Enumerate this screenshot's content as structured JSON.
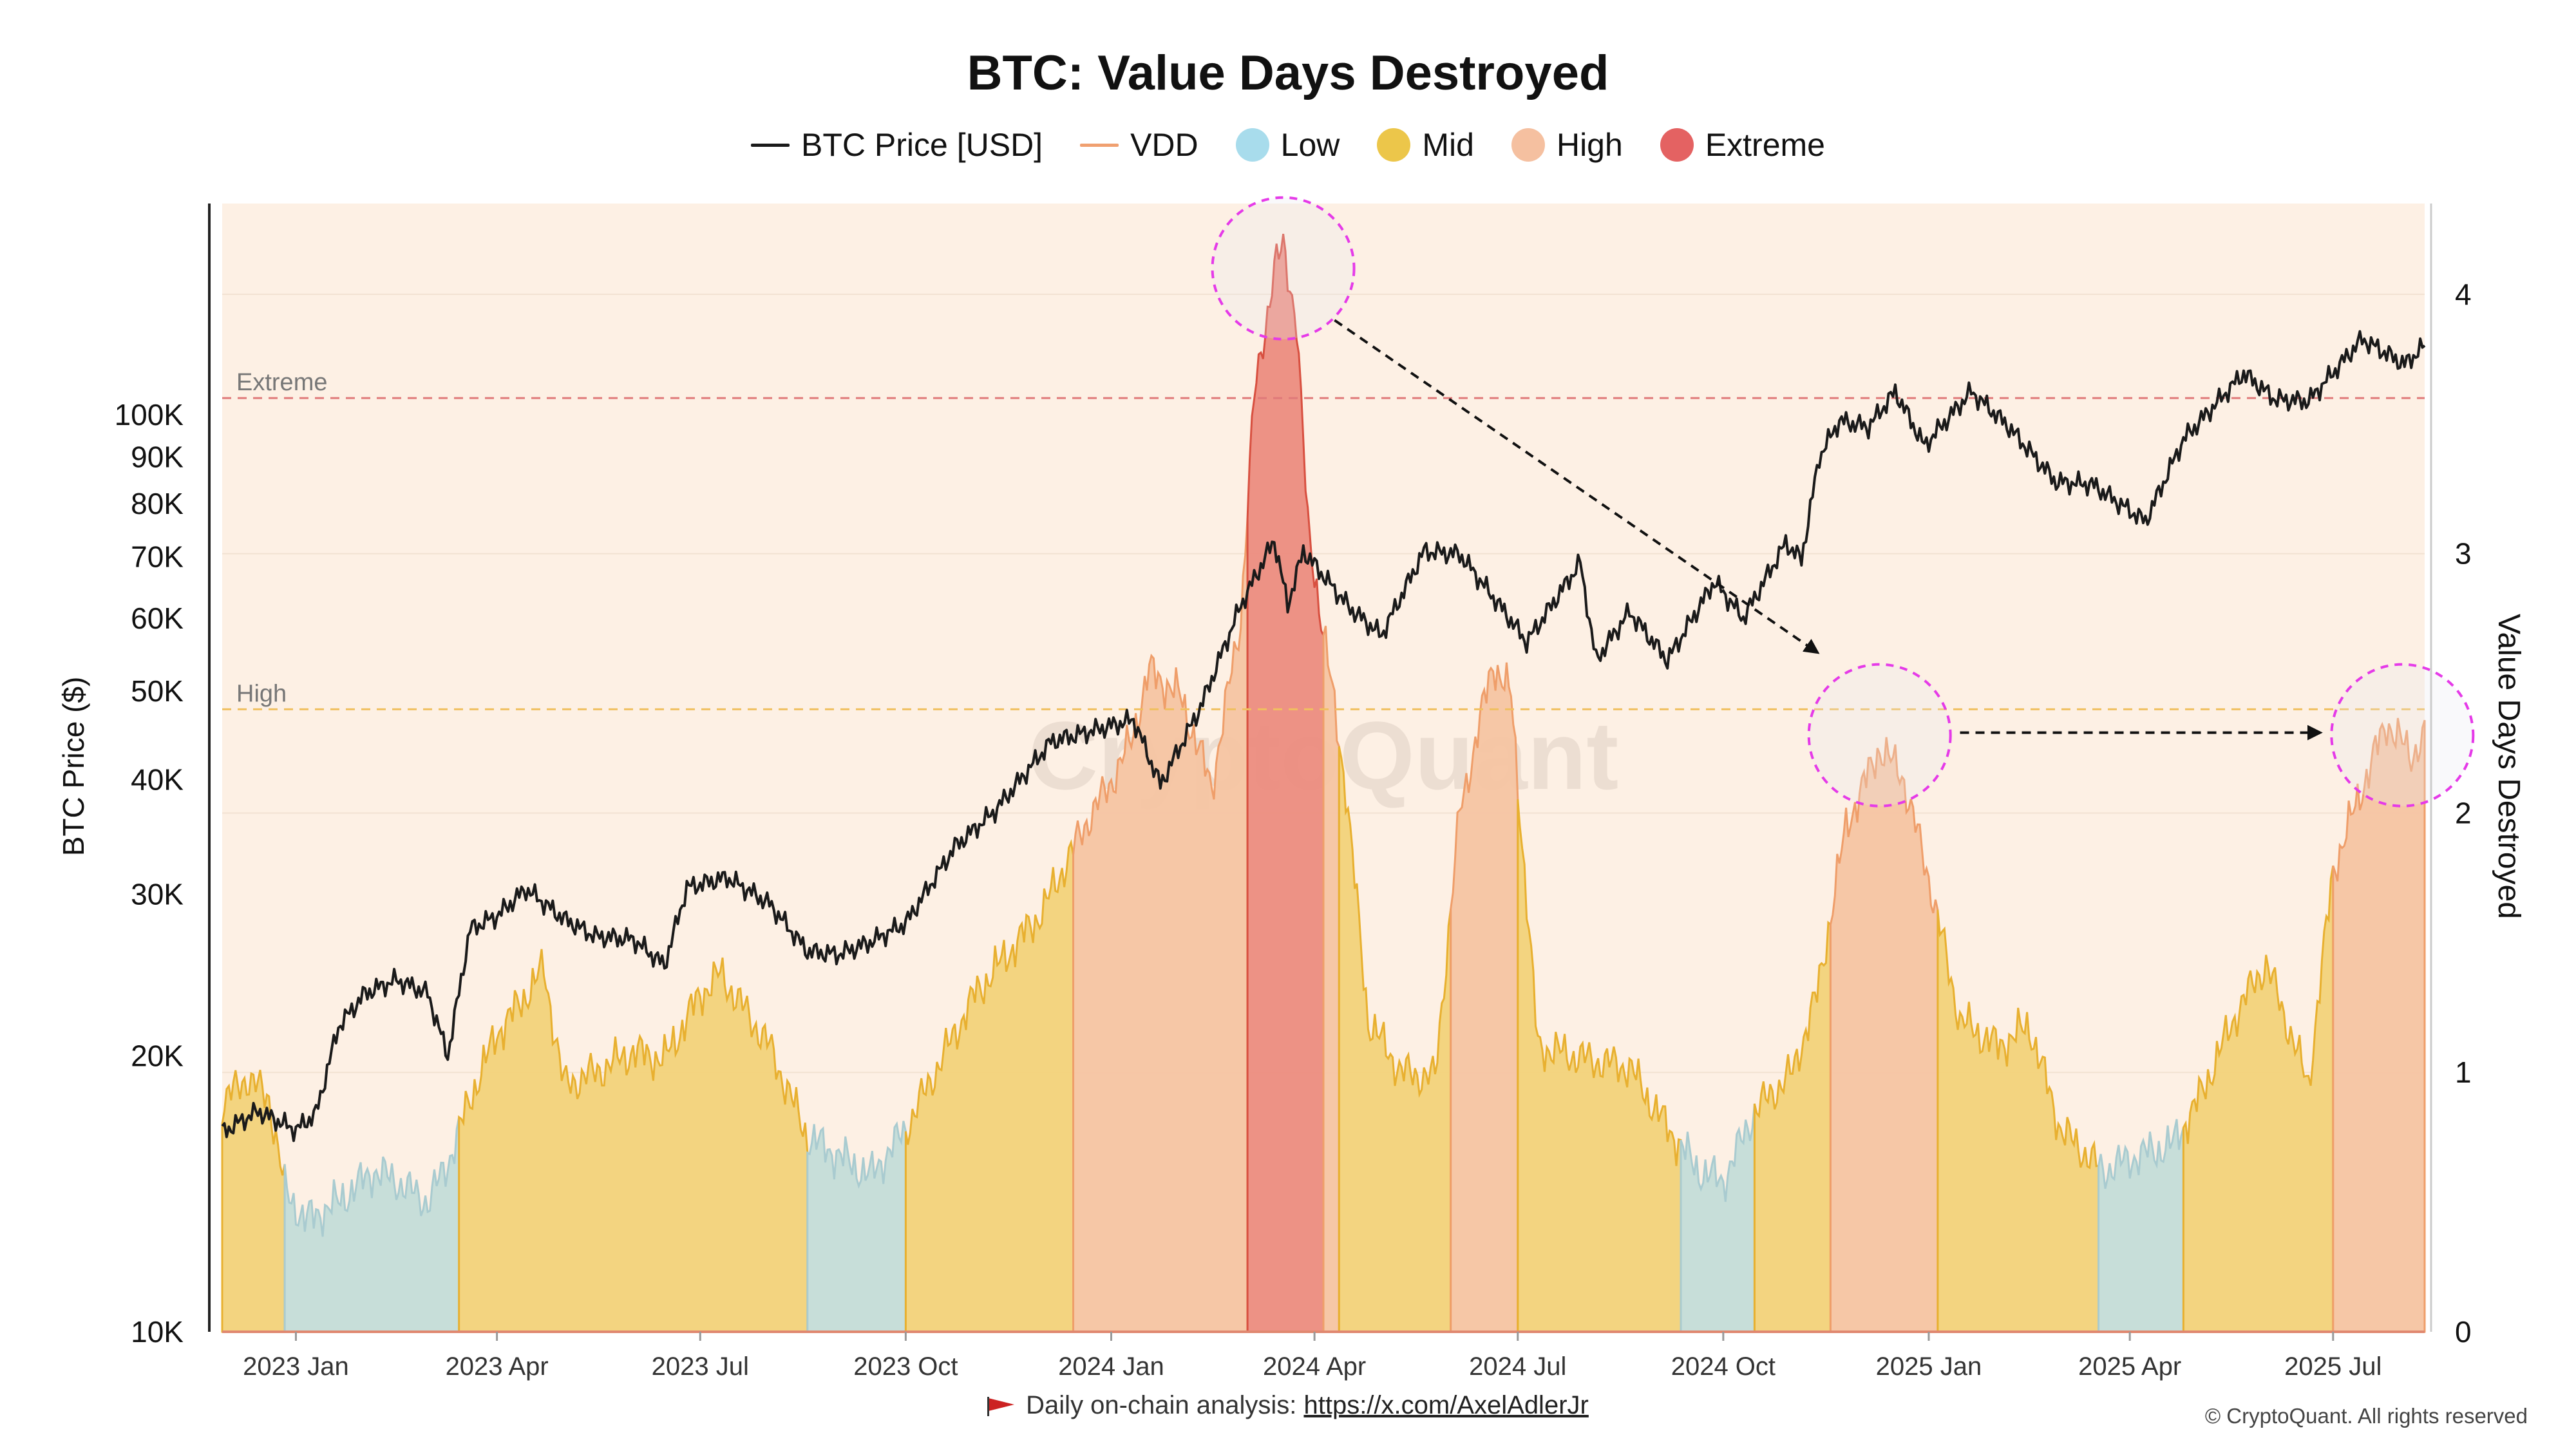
{
  "title": "BTC: Value Days Destroyed",
  "legend": [
    {
      "label": "BTC Price [USD]",
      "kind": "line",
      "color": "#1a1a1a"
    },
    {
      "label": "VDD",
      "kind": "line",
      "color": "#f0a070"
    },
    {
      "label": "Low",
      "kind": "dot",
      "color": "#a8dcec"
    },
    {
      "label": "Mid",
      "kind": "dot",
      "color": "#ecc64a"
    },
    {
      "label": "High",
      "kind": "dot",
      "color": "#f5c0a0"
    },
    {
      "label": "Extreme",
      "kind": "dot",
      "color": "#e46262"
    }
  ],
  "footer": {
    "text": "Daily on-chain analysis: ",
    "link": "https://x.com/AxelAdlerJr"
  },
  "copyright": "© CryptoQuant. All rights reserved",
  "watermark": "CryptoQuant",
  "chart_data": {
    "type": "area",
    "title": "BTC: Value Days Destroyed",
    "xlabel": "",
    "ylabel_left": "BTC Price ($)",
    "ylabel_right": "Value Days Destroyed",
    "x_range": [
      "2022-11-29",
      "2025-08-11"
    ],
    "x_ticks": [
      {
        "date": "2023-01-01",
        "label": "2023 Jan"
      },
      {
        "date": "2023-04-01",
        "label": "2023 Apr"
      },
      {
        "date": "2023-07-01",
        "label": "2023 Jul"
      },
      {
        "date": "2023-10-01",
        "label": "2023 Oct"
      },
      {
        "date": "2024-01-01",
        "label": "2024 Jan"
      },
      {
        "date": "2024-04-01",
        "label": "2024 Apr"
      },
      {
        "date": "2024-07-01",
        "label": "2024 Jul"
      },
      {
        "date": "2024-10-01",
        "label": "2024 Oct"
      },
      {
        "date": "2025-01-01",
        "label": "2025 Jan"
      },
      {
        "date": "2025-04-01",
        "label": "2025 Apr"
      },
      {
        "date": "2025-07-01",
        "label": "2025 Jul"
      }
    ],
    "y_left": {
      "scale": "log",
      "min": 10000,
      "max": 170000,
      "ticks": [
        {
          "value": 10000,
          "label": "10K"
        },
        {
          "value": 20000,
          "label": "20K"
        },
        {
          "value": 30000,
          "label": "30K"
        },
        {
          "value": 40000,
          "label": "40K"
        },
        {
          "value": 50000,
          "label": "50K"
        },
        {
          "value": 60000,
          "label": "60K"
        },
        {
          "value": 70000,
          "label": "70K"
        },
        {
          "value": 80000,
          "label": "80K"
        },
        {
          "value": 90000,
          "label": "90K"
        },
        {
          "value": 100000,
          "label": "100K"
        }
      ]
    },
    "y_right": {
      "scale": "linear",
      "min": 0,
      "max": 4.35,
      "ticks": [
        {
          "value": 0,
          "label": "0"
        },
        {
          "value": 1,
          "label": "1"
        },
        {
          "value": 2,
          "label": "2"
        },
        {
          "value": 3,
          "label": "3"
        },
        {
          "value": 4,
          "label": "4"
        }
      ]
    },
    "thresholds": [
      {
        "name": "Extreme",
        "value": 3.6,
        "color": "#e07a7a"
      },
      {
        "name": "High",
        "value": 2.4,
        "color": "#f0c060"
      }
    ],
    "band_colors": {
      "Low": "#c4dcd8",
      "Mid": "#f2d27a",
      "High": "#f6c4a2",
      "Extreme": "#ec8c80",
      "background": "#fdf0e4"
    },
    "band_lines": {
      "Low": "#a9cbd0",
      "Mid": "#e8b030",
      "High": "#ef9e6a",
      "Extreme": "#d85040"
    },
    "series": [
      {
        "name": "BTC Price [USD]",
        "axis": "left",
        "points": [
          [
            "2022-11-29",
            16500
          ],
          [
            "2022-12-15",
            17400
          ],
          [
            "2023-01-01",
            16600
          ],
          [
            "2023-01-10",
            17300
          ],
          [
            "2023-01-20",
            21500
          ],
          [
            "2023-02-01",
            23400
          ],
          [
            "2023-02-15",
            24200
          ],
          [
            "2023-03-01",
            23400
          ],
          [
            "2023-03-10",
            20000
          ],
          [
            "2023-03-20",
            27500
          ],
          [
            "2023-04-01",
            28400
          ],
          [
            "2023-04-14",
            30400
          ],
          [
            "2023-05-01",
            28200
          ],
          [
            "2023-05-15",
            27000
          ],
          [
            "2023-06-01",
            26800
          ],
          [
            "2023-06-15",
            25100
          ],
          [
            "2023-06-25",
            30500
          ],
          [
            "2023-07-13",
            31300
          ],
          [
            "2023-08-01",
            29300
          ],
          [
            "2023-08-18",
            26000
          ],
          [
            "2023-09-01",
            25800
          ],
          [
            "2023-09-15",
            26600
          ],
          [
            "2023-10-01",
            27900
          ],
          [
            "2023-10-23",
            33800
          ],
          [
            "2023-11-10",
            37000
          ],
          [
            "2023-12-05",
            44000
          ],
          [
            "2024-01-11",
            46500
          ],
          [
            "2024-01-23",
            39500
          ],
          [
            "2024-02-10",
            48000
          ],
          [
            "2024-02-28",
            62000
          ],
          [
            "2024-03-14",
            73000
          ],
          [
            "2024-03-20",
            62000
          ],
          [
            "2024-03-27",
            71000
          ],
          [
            "2024-04-17",
            61500
          ],
          [
            "2024-05-01",
            57500
          ],
          [
            "2024-05-20",
            71000
          ],
          [
            "2024-06-05",
            70500
          ],
          [
            "2024-06-25",
            61000
          ],
          [
            "2024-07-05",
            56500
          ],
          [
            "2024-07-29",
            69000
          ],
          [
            "2024-08-05",
            54000
          ],
          [
            "2024-08-20",
            61000
          ],
          [
            "2024-09-06",
            54000
          ],
          [
            "2024-09-27",
            65800
          ],
          [
            "2024-10-10",
            60000
          ],
          [
            "2024-10-29",
            72500
          ],
          [
            "2024-11-05",
            69500
          ],
          [
            "2024-11-13",
            90000
          ],
          [
            "2024-11-22",
            98500
          ],
          [
            "2024-12-05",
            97000
          ],
          [
            "2024-12-17",
            106000
          ],
          [
            "2024-12-30",
            92500
          ],
          [
            "2025-01-20",
            106000
          ],
          [
            "2025-02-05",
            97500
          ],
          [
            "2025-02-27",
            84500
          ],
          [
            "2025-03-15",
            84000
          ],
          [
            "2025-04-08",
            76500
          ],
          [
            "2025-04-25",
            94000
          ],
          [
            "2025-05-22",
            111000
          ],
          [
            "2025-06-05",
            104000
          ],
          [
            "2025-06-20",
            103500
          ],
          [
            "2025-07-14",
            121000
          ],
          [
            "2025-08-02",
            113500
          ],
          [
            "2025-08-11",
            119000
          ]
        ]
      },
      {
        "name": "VDD",
        "axis": "right",
        "points": [
          [
            "2022-11-29",
            0.88
          ],
          [
            "2022-12-10",
            0.98
          ],
          [
            "2022-12-20",
            0.9
          ],
          [
            "2022-12-27",
            0.55
          ],
          [
            "2023-01-05",
            0.43
          ],
          [
            "2023-01-20",
            0.5
          ],
          [
            "2023-02-05",
            0.62
          ],
          [
            "2023-02-15",
            0.58
          ],
          [
            "2023-03-01",
            0.5
          ],
          [
            "2023-03-10",
            0.65
          ],
          [
            "2023-03-20",
            0.9
          ],
          [
            "2023-04-01",
            1.15
          ],
          [
            "2023-04-10",
            1.25
          ],
          [
            "2023-04-22",
            1.4
          ],
          [
            "2023-05-01",
            0.95
          ],
          [
            "2023-05-15",
            1.0
          ],
          [
            "2023-06-01",
            1.08
          ],
          [
            "2023-06-15",
            1.05
          ],
          [
            "2023-07-01",
            1.3
          ],
          [
            "2023-07-10",
            1.38
          ],
          [
            "2023-08-01",
            1.1
          ],
          [
            "2023-08-18",
            0.75
          ],
          [
            "2023-09-01",
            0.68
          ],
          [
            "2023-09-15",
            0.6
          ],
          [
            "2023-10-01",
            0.78
          ],
          [
            "2023-10-20",
            1.1
          ],
          [
            "2023-11-01",
            1.3
          ],
          [
            "2023-11-15",
            1.45
          ],
          [
            "2023-12-01",
            1.62
          ],
          [
            "2023-12-20",
            1.95
          ],
          [
            "2024-01-01",
            2.12
          ],
          [
            "2024-01-10",
            2.28
          ],
          [
            "2024-01-18",
            2.55
          ],
          [
            "2024-02-01",
            2.45
          ],
          [
            "2024-02-15",
            2.1
          ],
          [
            "2024-02-28",
            2.75
          ],
          [
            "2024-03-05",
            3.6
          ],
          [
            "2024-03-14",
            4.1
          ],
          [
            "2024-03-18",
            4.18
          ],
          [
            "2024-03-24",
            3.9
          ],
          [
            "2024-03-29",
            3.1
          ],
          [
            "2024-04-05",
            2.7
          ],
          [
            "2024-04-15",
            2.1
          ],
          [
            "2024-04-25",
            1.2
          ],
          [
            "2024-05-10",
            1.0
          ],
          [
            "2024-05-25",
            0.98
          ],
          [
            "2024-06-05",
            2.0
          ],
          [
            "2024-06-20",
            2.58
          ],
          [
            "2024-06-28",
            2.45
          ],
          [
            "2024-07-10",
            1.1
          ],
          [
            "2024-08-01",
            1.05
          ],
          [
            "2024-08-20",
            1.02
          ],
          [
            "2024-09-01",
            0.85
          ],
          [
            "2024-09-20",
            0.62
          ],
          [
            "2024-10-01",
            0.58
          ],
          [
            "2024-10-15",
            0.85
          ],
          [
            "2024-11-01",
            1.0
          ],
          [
            "2024-11-12",
            1.3
          ],
          [
            "2024-11-25",
            1.95
          ],
          [
            "2024-12-10",
            2.25
          ],
          [
            "2024-12-20",
            2.15
          ],
          [
            "2025-01-01",
            1.75
          ],
          [
            "2025-01-15",
            1.2
          ],
          [
            "2025-02-01",
            1.1
          ],
          [
            "2025-02-15",
            1.18
          ],
          [
            "2025-03-01",
            0.78
          ],
          [
            "2025-03-20",
            0.62
          ],
          [
            "2025-04-05",
            0.68
          ],
          [
            "2025-04-20",
            0.72
          ],
          [
            "2025-05-01",
            0.88
          ],
          [
            "2025-05-20",
            1.25
          ],
          [
            "2025-06-01",
            1.42
          ],
          [
            "2025-06-10",
            1.2
          ],
          [
            "2025-06-20",
            0.95
          ],
          [
            "2025-07-01",
            1.78
          ],
          [
            "2025-07-15",
            2.12
          ],
          [
            "2025-07-25",
            2.35
          ],
          [
            "2025-08-05",
            2.22
          ],
          [
            "2025-08-11",
            2.3
          ]
        ]
      }
    ],
    "regimes": [
      {
        "band": "Mid",
        "from": "2022-11-29",
        "to": "2022-12-27"
      },
      {
        "band": "Low",
        "from": "2022-12-27",
        "to": "2023-03-15"
      },
      {
        "band": "Mid",
        "from": "2023-03-15",
        "to": "2023-08-18"
      },
      {
        "band": "Low",
        "from": "2023-08-18",
        "to": "2023-10-01"
      },
      {
        "band": "Mid",
        "from": "2023-10-01",
        "to": "2023-12-15"
      },
      {
        "band": "High",
        "from": "2023-12-15",
        "to": "2024-03-02"
      },
      {
        "band": "Extreme",
        "from": "2024-03-02",
        "to": "2024-04-05"
      },
      {
        "band": "High",
        "from": "2024-04-05",
        "to": "2024-04-12"
      },
      {
        "band": "Mid",
        "from": "2024-04-12",
        "to": "2024-06-01"
      },
      {
        "band": "High",
        "from": "2024-06-01",
        "to": "2024-07-01"
      },
      {
        "band": "Mid",
        "from": "2024-07-01",
        "to": "2024-09-12"
      },
      {
        "band": "Low",
        "from": "2024-09-12",
        "to": "2024-10-15"
      },
      {
        "band": "Mid",
        "from": "2024-10-15",
        "to": "2024-11-18"
      },
      {
        "band": "High",
        "from": "2024-11-18",
        "to": "2025-01-05"
      },
      {
        "band": "Mid",
        "from": "2025-01-05",
        "to": "2025-03-18"
      },
      {
        "band": "Low",
        "from": "2025-03-18",
        "to": "2025-04-25"
      },
      {
        "band": "Mid",
        "from": "2025-04-25",
        "to": "2025-07-01"
      },
      {
        "band": "High",
        "from": "2025-07-01",
        "to": "2025-08-11"
      }
    ],
    "annotations": [
      {
        "type": "circle",
        "date": "2024-03-18",
        "value": 4.1,
        "note": "VDD peak"
      },
      {
        "type": "circle",
        "date": "2024-12-10",
        "value": 2.3,
        "note": "second peak"
      },
      {
        "type": "circle",
        "date": "2025-08-01",
        "value": 2.3,
        "note": "current level"
      },
      {
        "type": "arrow",
        "from": [
          "2024-04-10",
          3.9
        ],
        "to": [
          "2024-11-12",
          2.62
        ]
      },
      {
        "type": "arrow",
        "from": [
          "2025-01-15",
          2.31
        ],
        "to": [
          "2025-06-25",
          2.31
        ]
      }
    ]
  }
}
